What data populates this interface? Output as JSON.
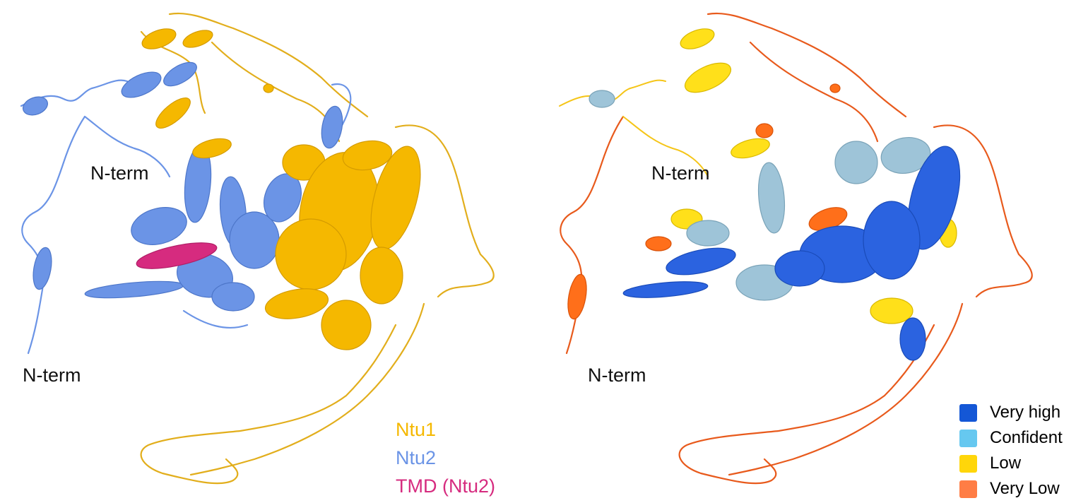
{
  "left_panel": {
    "labels": {
      "nterm_upper": "N-term",
      "nterm_lower": "N-term"
    },
    "legend": [
      {
        "label": "Ntu1",
        "color": "#f5b800"
      },
      {
        "label": "Ntu2",
        "color": "#6b94e6"
      },
      {
        "label": "TMD (Ntu2)",
        "color": "#d62b7f"
      }
    ]
  },
  "right_panel": {
    "labels": {
      "nterm_upper": "N-term",
      "nterm_lower": "N-term"
    },
    "legend": [
      {
        "label": "Very high",
        "color": "#1457d6"
      },
      {
        "label": "Confident",
        "color": "#66c8f0"
      },
      {
        "label": "Low",
        "color": "#ffd60a"
      },
      {
        "label": "Very Low",
        "color": "#ff7d45"
      }
    ]
  }
}
